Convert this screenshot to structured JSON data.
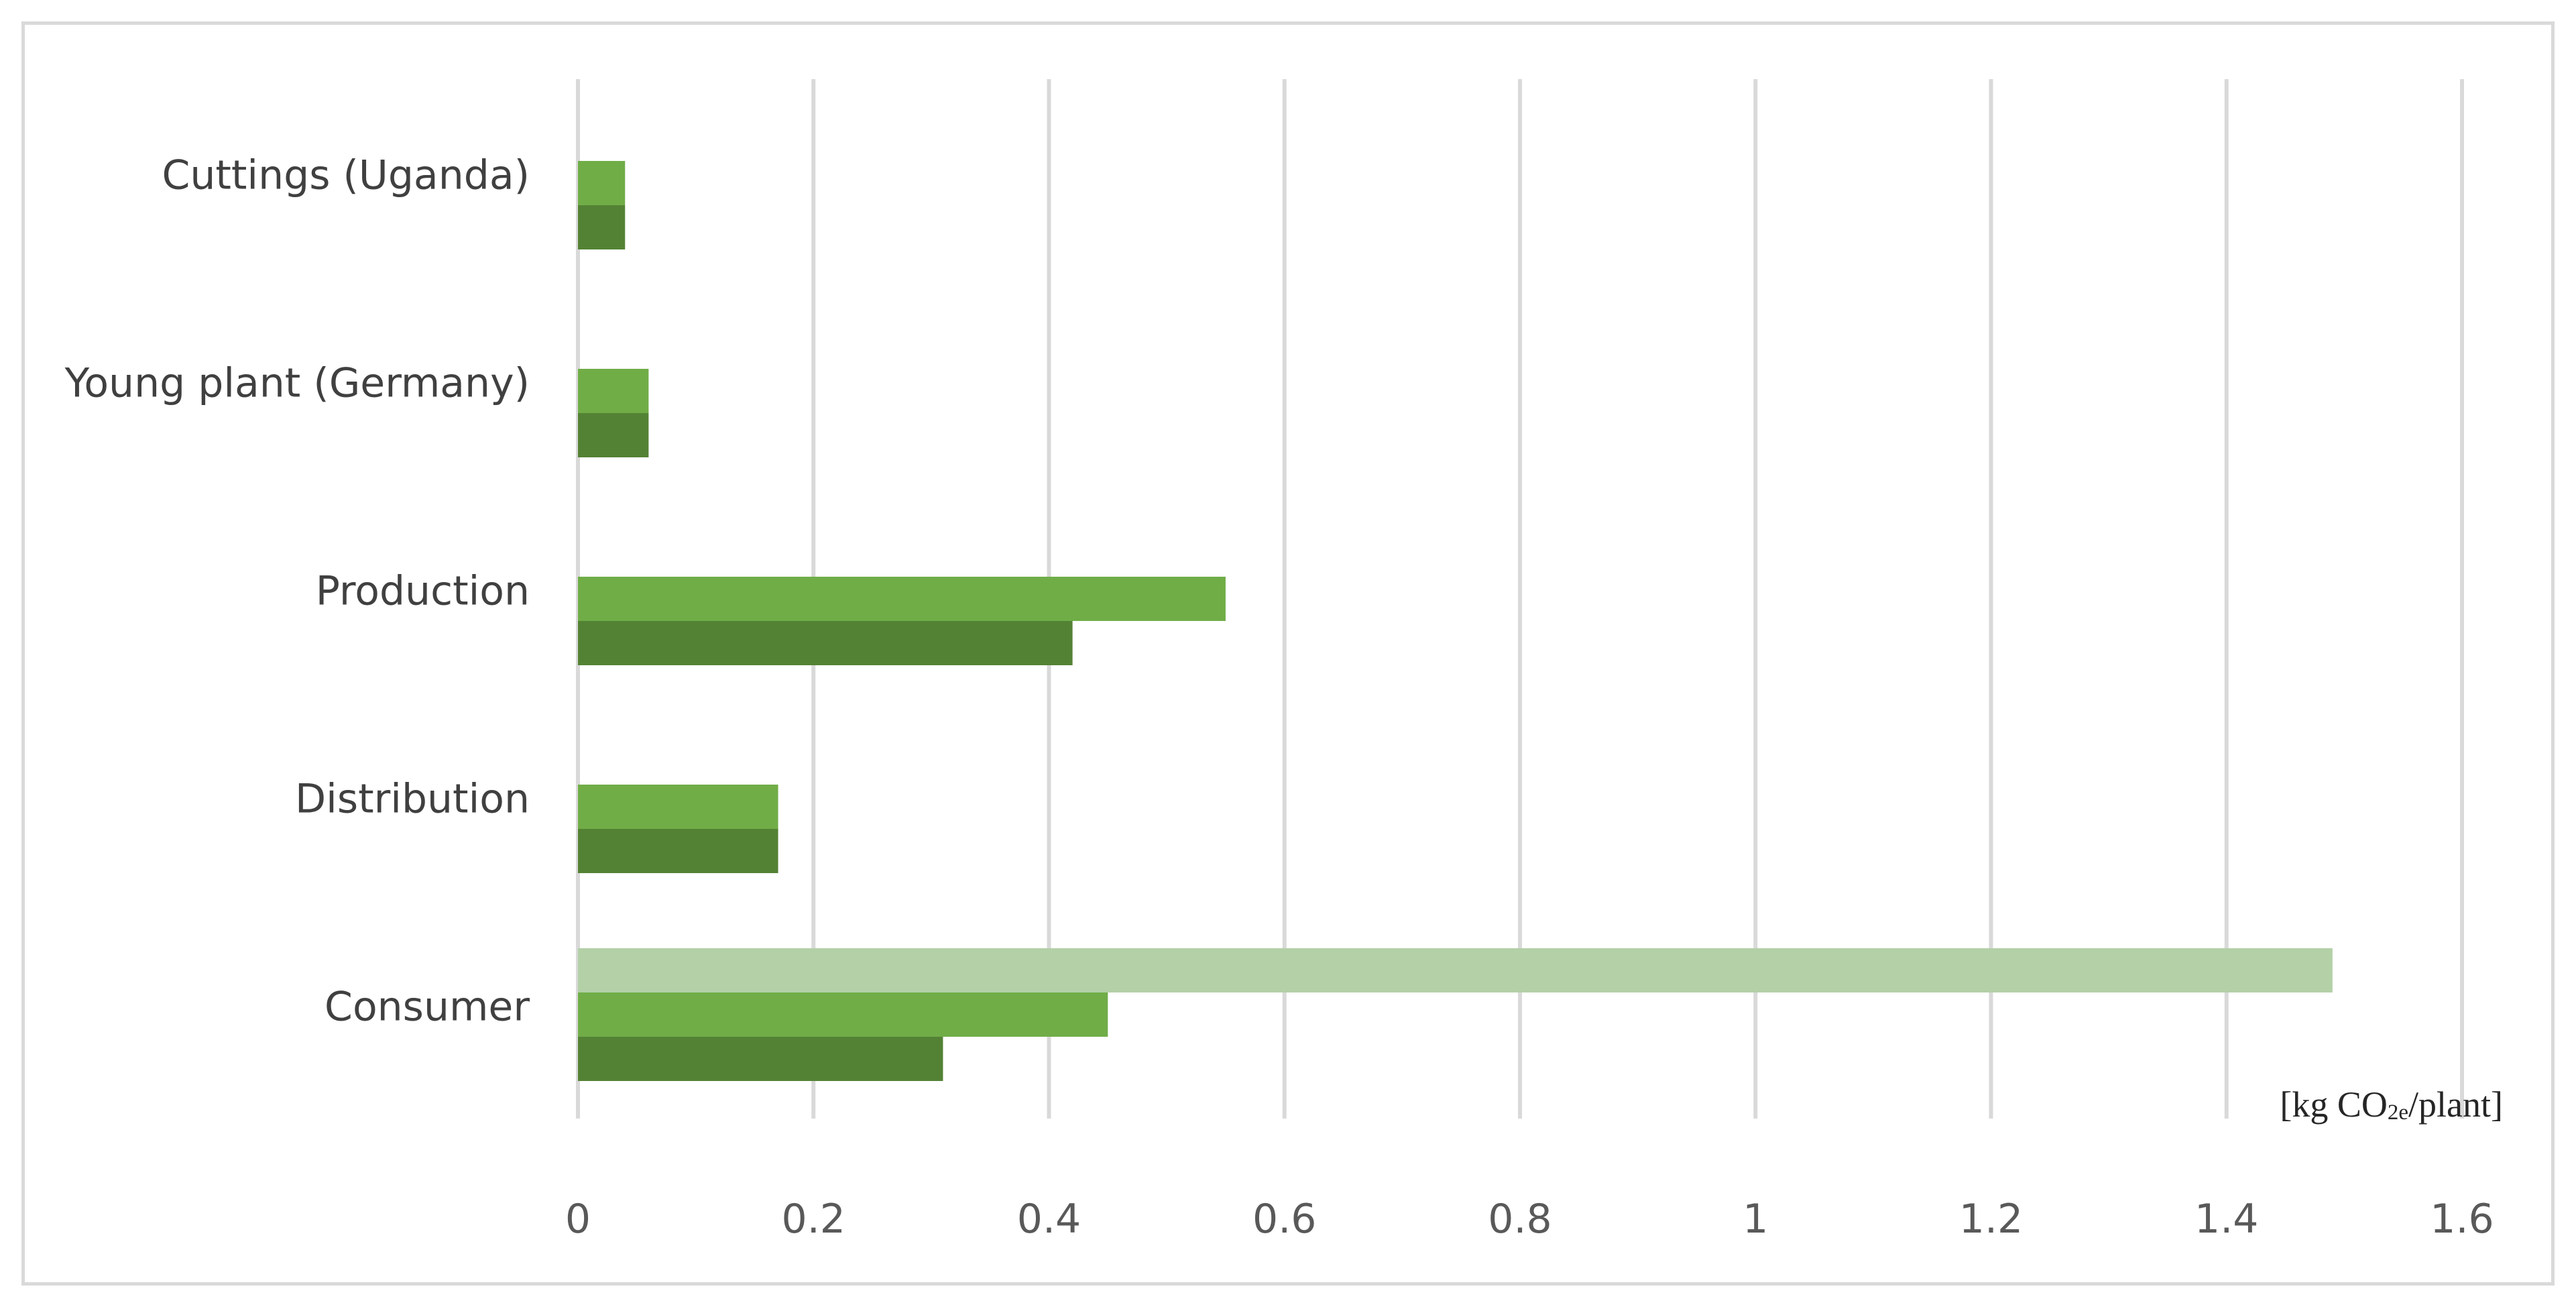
{
  "chart_data": {
    "type": "bar",
    "orientation": "horizontal",
    "categories": [
      "Cuttings (Uganda)",
      "Young plant (Germany)",
      "Production",
      "Distribution",
      "Consumer"
    ],
    "series": [
      {
        "color": "#b3d0a7",
        "values": [
          null,
          null,
          null,
          null,
          1.49
        ]
      },
      {
        "color": "#70ad47",
        "values": [
          0.04,
          0.06,
          0.55,
          0.17,
          0.45
        ]
      },
      {
        "color": "#548235",
        "values": [
          0.04,
          0.06,
          0.42,
          0.17,
          0.31
        ]
      }
    ],
    "xlim": [
      0,
      1.6
    ],
    "xticks": [
      "0",
      "0.2",
      "0.4",
      "0.6",
      "0.8",
      "1",
      "1.2",
      "1.4",
      "1.6"
    ],
    "grid": "vertical",
    "legend": "none",
    "unit_label": {
      "prefix": "[kg CO",
      "subscript": "2e",
      "suffix": "/plant]"
    }
  }
}
